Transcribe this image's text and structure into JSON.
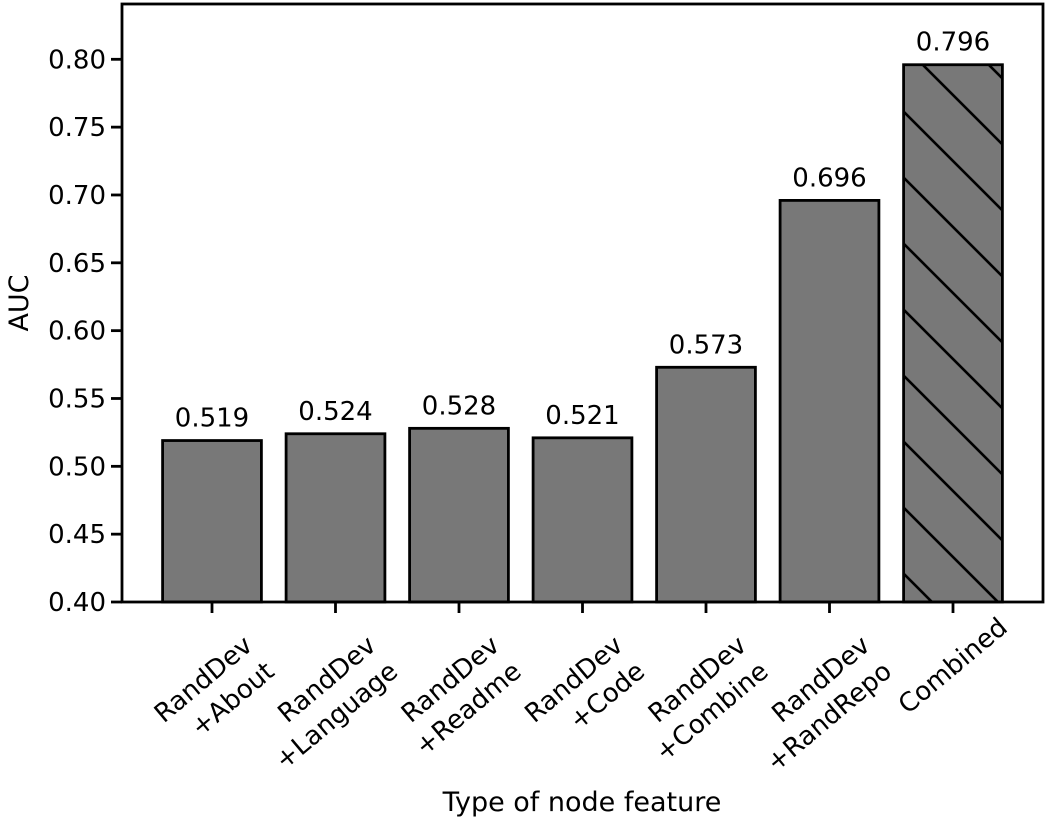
{
  "chart_data": {
    "type": "bar",
    "title": "",
    "xlabel": "Type of node feature",
    "ylabel": "AUC",
    "categories": [
      "RandDev\n+About",
      "RandDev\n+Language",
      "RandDev\n+Readme",
      "RandDev\n+Code",
      "RandDev\n+Combine",
      "RandDev\n+RandRepo",
      "Combined"
    ],
    "values": [
      0.519,
      0.524,
      0.528,
      0.521,
      0.573,
      0.696,
      0.796
    ],
    "value_labels": [
      "0.519",
      "0.524",
      "0.528",
      "0.521",
      "0.573",
      "0.696",
      "0.796"
    ],
    "yticks": [
      "0.40",
      "0.45",
      "0.50",
      "0.55",
      "0.60",
      "0.65",
      "0.70",
      "0.75",
      "0.80"
    ],
    "ylim": [
      0.4,
      0.84
    ],
    "grid": false,
    "legend": null,
    "bar_fill": "#787878",
    "bar_edge": "#000000",
    "hatched": [
      false,
      false,
      false,
      false,
      false,
      false,
      true
    ],
    "hatch_style": "diagonal-backslash"
  }
}
